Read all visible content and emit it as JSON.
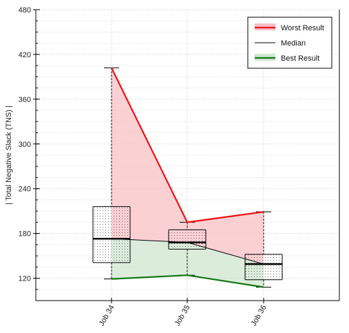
{
  "chart_data": {
    "type": "box",
    "title": "",
    "xlabel": "",
    "ylabel": "| Total Negative Slack (TNS) |",
    "categories": [
      "Job 34",
      "Job 35",
      "Job 36"
    ],
    "ylim": [
      90,
      480
    ],
    "yticks": [
      120,
      180,
      240,
      300,
      360,
      420,
      480
    ],
    "grid": true,
    "legend_position": "top-right",
    "boxes": [
      {
        "category": "Job 34",
        "min": 119,
        "q1": 141,
        "median": 173,
        "q3": 216,
        "max": 402
      },
      {
        "category": "Job 35",
        "min": 124,
        "q1": 159,
        "median": 168,
        "q3": 185,
        "max": 195
      },
      {
        "category": "Job 36",
        "min": 108,
        "q1": 118,
        "median": 139,
        "q3": 152,
        "max": 209
      }
    ],
    "series": [
      {
        "name": "Worst Result",
        "color": "#ee1111",
        "values": [
          402,
          195,
          209
        ]
      },
      {
        "name": "Median",
        "color": "#000000",
        "values": [
          173,
          168,
          139
        ]
      },
      {
        "name": "Best Result",
        "color": "#117711",
        "values": [
          119,
          124,
          108
        ]
      }
    ],
    "colors": {
      "worst_fill": "#f8c0c4",
      "best_fill": "#cfe6cf"
    }
  }
}
